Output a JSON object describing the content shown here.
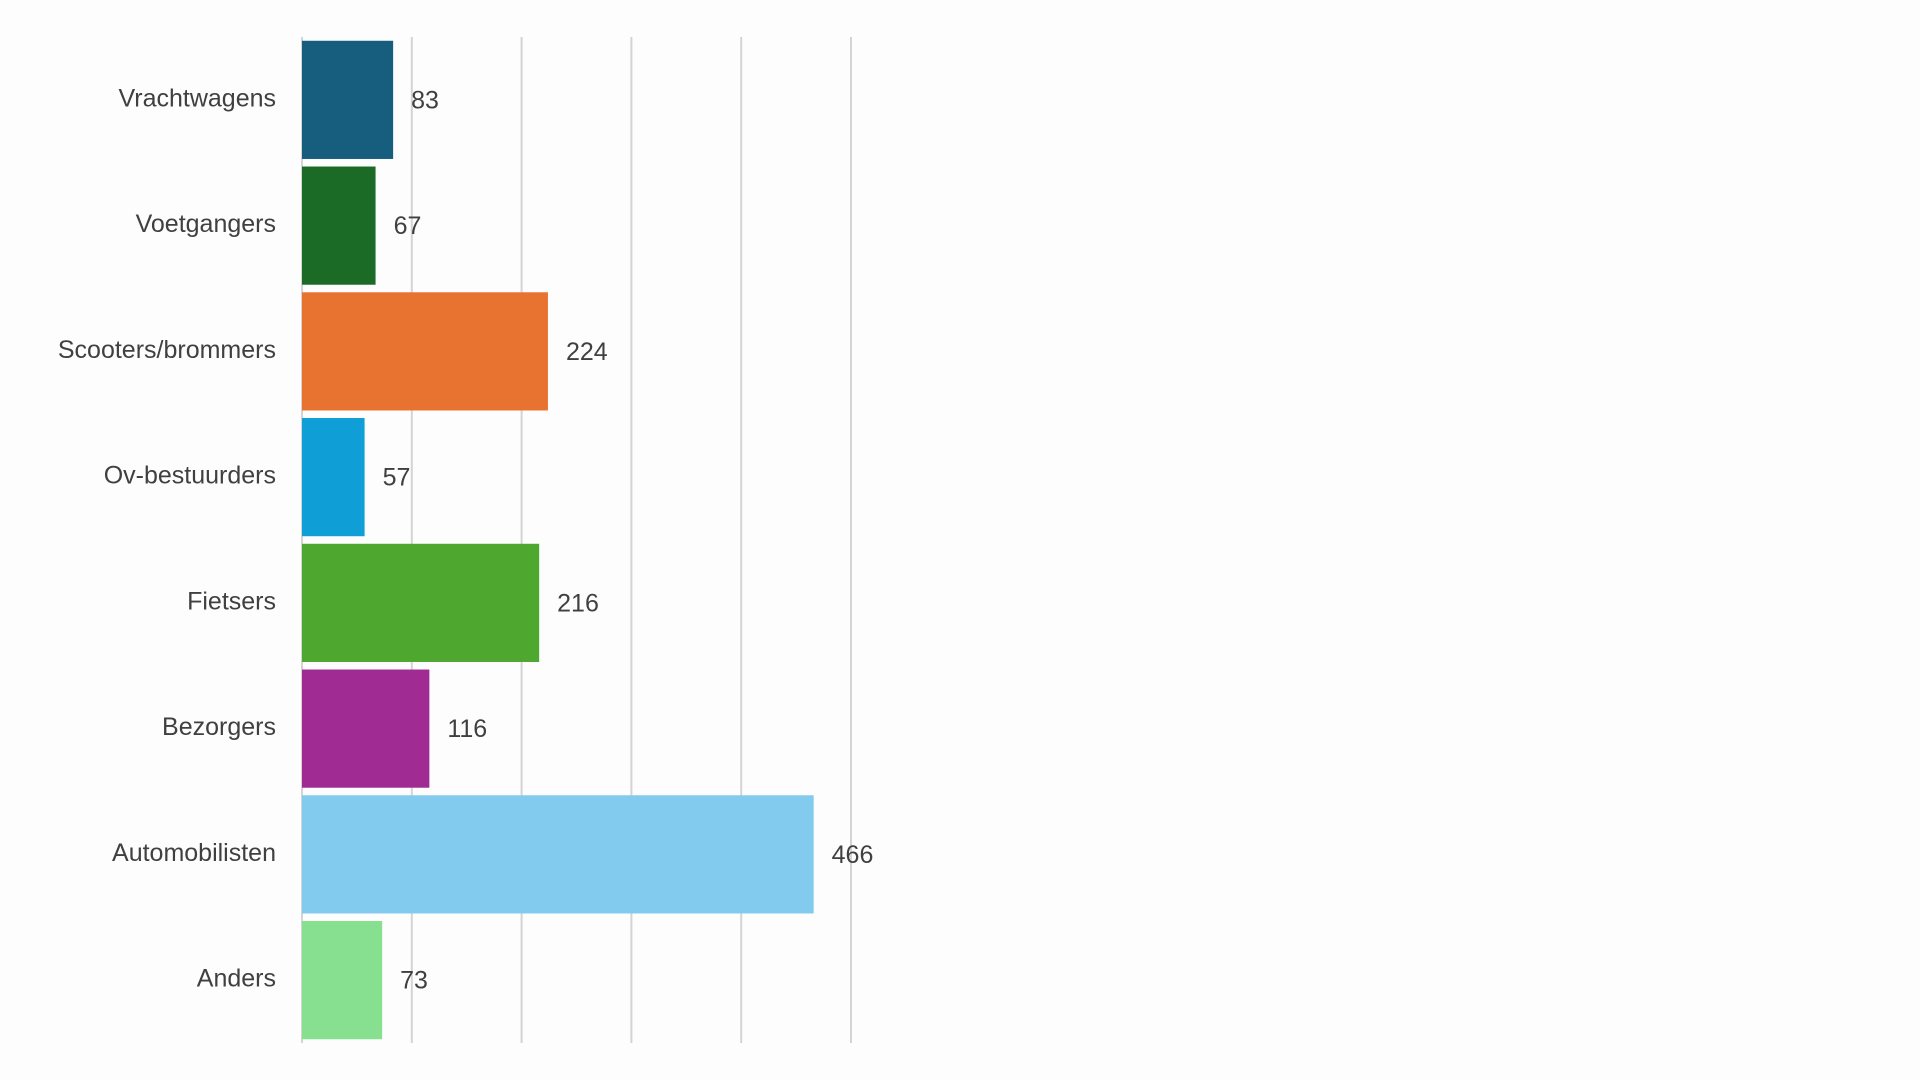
{
  "chart_data": {
    "type": "barh",
    "categories": [
      "Vrachtwagens",
      "Voetgangers",
      "Scooters/brommers",
      "Ov-bestuurders",
      "Fietsers",
      "Bezorgers",
      "Automobilisten",
      "Anders"
    ],
    "values": [
      83,
      67,
      224,
      57,
      216,
      116,
      466,
      73
    ],
    "colors": [
      "#175e7e",
      "#1b6b27",
      "#e87330",
      "#0f9ed5",
      "#4ea72e",
      "#a02b93",
      "#82caee",
      "#86e08f"
    ],
    "xlim": [
      0,
      500
    ],
    "xticks": [
      0,
      100,
      200,
      300,
      400,
      500
    ],
    "grid": true
  }
}
